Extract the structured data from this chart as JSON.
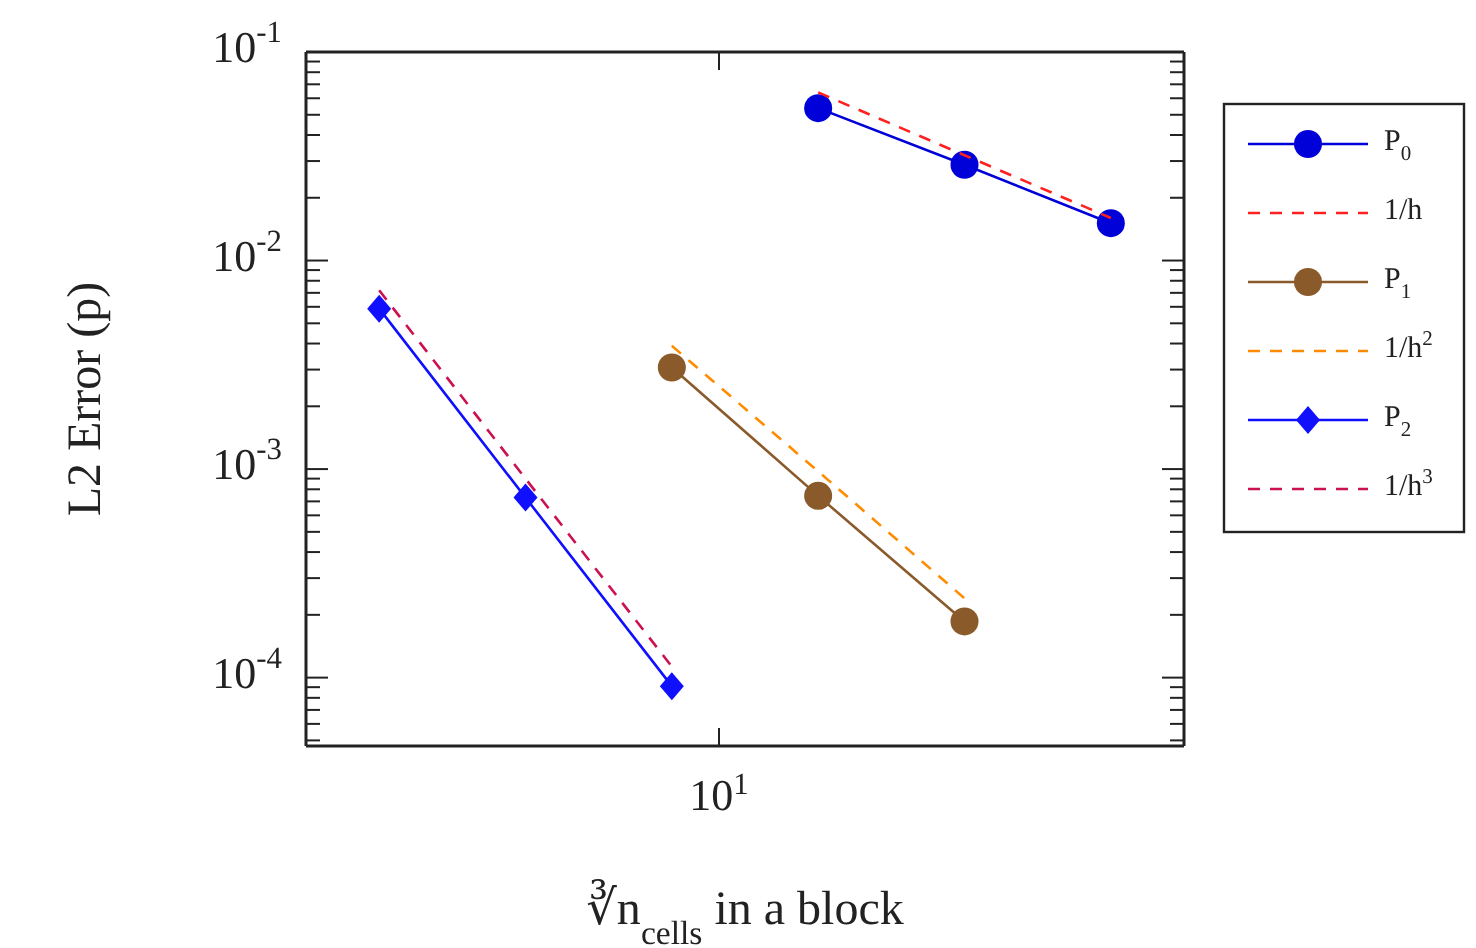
{
  "chart_data": {
    "type": "line",
    "xlabel": "∛n$_{cells}$ in a block",
    "ylabel": "L2 Error (p)",
    "log": "y",
    "grid": false,
    "legend": "right",
    "categories": [
      null,
      null,
      null,
      null,
      null,
      null
    ],
    "annotations": [
      "10$^{1}$"
    ],
    "ylim": [
      4.7e-05,
      0.1
    ],
    "yticks": [
      {
        "value": 0.0001,
        "label": "10$^{-4}$"
      },
      {
        "value": 0.001,
        "label": "10$^{-3}$"
      },
      {
        "value": 0.01,
        "label": "10$^{-2}$"
      },
      {
        "value": 0.1,
        "label": "10$^{-1}$"
      }
    ],
    "series": [
      {
        "name": "P$_{0}$",
        "color": "#0000d8",
        "values": [
          null,
          null,
          null,
          0.0538,
          0.0288,
          0.0151
        ],
        "marker": "circle",
        "line_style": "solid"
      },
      {
        "name": "1/h",
        "color": "#ff2020",
        "values": [
          null,
          null,
          null,
          0.064,
          0.032,
          0.016
        ],
        "marker": "none",
        "line_style": "dashed"
      },
      {
        "name": "P$_{1}$",
        "color": "#8b5a2b",
        "values": [
          null,
          null,
          0.00307,
          0.000744,
          0.000186,
          null
        ],
        "marker": "circle",
        "line_style": "solid"
      },
      {
        "name": "1/h$^{2}$",
        "color": "#ff8c00",
        "values": [
          null,
          null,
          0.0039,
          0.000975,
          0.00024,
          null
        ],
        "marker": "none",
        "line_style": "dashed"
      },
      {
        "name": "P$_{2}$",
        "color": "#1010ff",
        "values": [
          0.00588,
          0.00073,
          9.1e-05,
          null,
          null,
          null
        ],
        "marker": "diamond",
        "line_style": "solid"
      },
      {
        "name": "1/h$^{3}$",
        "color": "#cc1050",
        "values": [
          0.0072,
          0.0009,
          0.000113,
          null,
          null,
          null
        ],
        "marker": "none",
        "line_style": "dashed"
      }
    ]
  }
}
